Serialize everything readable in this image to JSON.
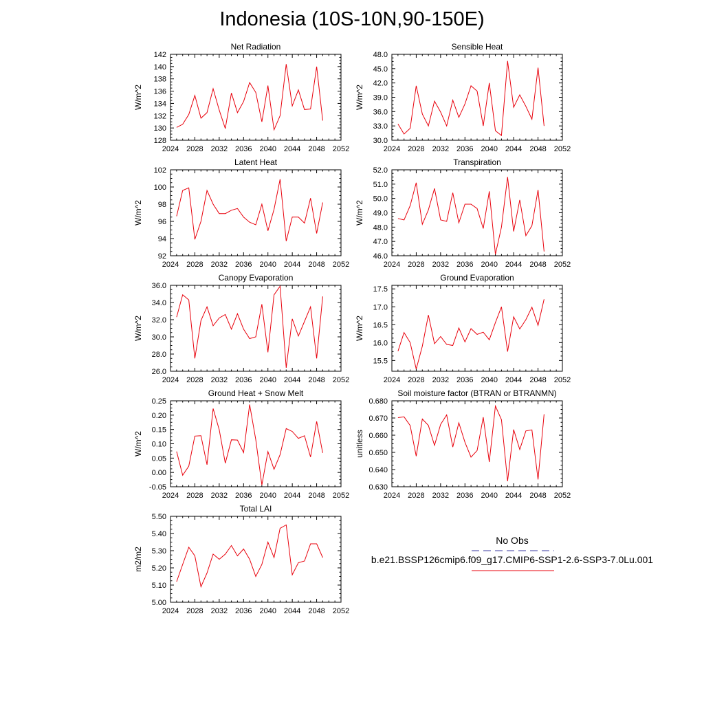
{
  "title": "Indonesia (10S-10N,90-150E)",
  "legend": {
    "obs_label": "No Obs",
    "obs_color": "#3a3aa0",
    "series_label": "b.e21.BSSP126cmip6.f09_g17.CMIP6-SSP1-2.6-SSP3-7.0Lu.001",
    "series_color": "#e8000b"
  },
  "chart_data": [
    {
      "type": "line",
      "title": "Net Radiation",
      "ylabel": "W/m^2",
      "xlim": [
        2024,
        2052
      ],
      "xticks": [
        "2024",
        "2028",
        "2032",
        "2036",
        "2040",
        "2044",
        "2048",
        "2052"
      ],
      "ylim": [
        128,
        142
      ],
      "yticks": [
        "128",
        "130",
        "132",
        "134",
        "136",
        "138",
        "140",
        "142"
      ],
      "x": [
        2025,
        2026,
        2027,
        2028,
        2029,
        2030,
        2031,
        2032,
        2033,
        2034,
        2035,
        2036,
        2037,
        2038,
        2039,
        2040,
        2041,
        2042,
        2043,
        2044,
        2045,
        2046,
        2047,
        2048,
        2049
      ],
      "values": [
        130.1,
        130.6,
        132.2,
        135.3,
        131.6,
        132.5,
        136.4,
        132.9,
        129.9,
        135.7,
        132.5,
        134.3,
        137.4,
        135.8,
        131.0,
        136.9,
        129.7,
        132.0,
        140.4,
        133.6,
        136.2,
        133.0,
        133.1,
        140.0,
        131.2
      ]
    },
    {
      "type": "line",
      "title": "Sensible Heat",
      "ylabel": "W/m^2",
      "xlim": [
        2024,
        2052
      ],
      "xticks": [
        "2024",
        "2028",
        "2032",
        "2036",
        "2040",
        "2044",
        "2048",
        "2052"
      ],
      "ylim": [
        30,
        48
      ],
      "yticks": [
        "30.0",
        "33.0",
        "36.0",
        "39.0",
        "42.0",
        "45.0",
        "48.0"
      ],
      "x": [
        2025,
        2026,
        2027,
        2028,
        2029,
        2030,
        2031,
        2032,
        2033,
        2034,
        2035,
        2036,
        2037,
        2038,
        2039,
        2040,
        2041,
        2042,
        2043,
        2044,
        2045,
        2046,
        2047,
        2048,
        2049
      ],
      "values": [
        33.4,
        31.3,
        32.5,
        41.4,
        35.5,
        33.0,
        38.2,
        35.9,
        33.0,
        38.4,
        34.8,
        37.6,
        41.4,
        40.3,
        33.0,
        42.0,
        32.0,
        31.0,
        46.6,
        36.9,
        39.5,
        37.1,
        34.4,
        45.2,
        33.0
      ]
    },
    {
      "type": "line",
      "title": "Latent Heat",
      "ylabel": "W/m^2",
      "xlim": [
        2024,
        2052
      ],
      "xticks": [
        "2024",
        "2028",
        "2032",
        "2036",
        "2040",
        "2044",
        "2048",
        "2052"
      ],
      "ylim": [
        92,
        102
      ],
      "yticks": [
        "92",
        "94",
        "96",
        "98",
        "100",
        "102"
      ],
      "x": [
        2025,
        2026,
        2027,
        2028,
        2029,
        2030,
        2031,
        2032,
        2033,
        2034,
        2035,
        2036,
        2037,
        2038,
        2039,
        2040,
        2041,
        2042,
        2043,
        2044,
        2045,
        2046,
        2047,
        2048,
        2049
      ],
      "values": [
        96.6,
        99.6,
        99.9,
        93.9,
        96.0,
        99.6,
        98.0,
        96.9,
        96.9,
        97.3,
        97.5,
        96.5,
        95.9,
        95.6,
        98.0,
        94.9,
        97.4,
        100.9,
        93.7,
        96.5,
        96.5,
        95.8,
        98.7,
        94.6,
        98.2
      ]
    },
    {
      "type": "line",
      "title": "Transpiration",
      "ylabel": "W/m^2",
      "xlim": [
        2024,
        2052
      ],
      "xticks": [
        "2024",
        "2028",
        "2032",
        "2036",
        "2040",
        "2044",
        "2048",
        "2052"
      ],
      "ylim": [
        46,
        52
      ],
      "yticks": [
        "46.0",
        "47.0",
        "48.0",
        "49.0",
        "50.0",
        "51.0",
        "52.0"
      ],
      "x": [
        2025,
        2026,
        2027,
        2028,
        2029,
        2030,
        2031,
        2032,
        2033,
        2034,
        2035,
        2036,
        2037,
        2038,
        2039,
        2040,
        2041,
        2042,
        2043,
        2044,
        2045,
        2046,
        2047,
        2048,
        2049
      ],
      "values": [
        48.6,
        48.5,
        49.5,
        51.1,
        48.2,
        49.2,
        50.7,
        48.5,
        48.4,
        50.4,
        48.3,
        49.6,
        49.6,
        49.3,
        47.9,
        50.5,
        46.1,
        48.0,
        51.5,
        47.7,
        49.9,
        47.4,
        48.1,
        50.6,
        46.3
      ]
    },
    {
      "type": "line",
      "title": "Canopy Evaporation",
      "ylabel": "W/m^2",
      "xlim": [
        2024,
        2052
      ],
      "xticks": [
        "2024",
        "2028",
        "2032",
        "2036",
        "2040",
        "2044",
        "2048",
        "2052"
      ],
      "ylim": [
        26,
        36
      ],
      "yticks": [
        "26.0",
        "28.0",
        "30.0",
        "32.0",
        "34.0",
        "36.0"
      ],
      "x": [
        2025,
        2026,
        2027,
        2028,
        2029,
        2030,
        2031,
        2032,
        2033,
        2034,
        2035,
        2036,
        2037,
        2038,
        2039,
        2040,
        2041,
        2042,
        2043,
        2044,
        2045,
        2046,
        2047,
        2048,
        2049
      ],
      "values": [
        32.3,
        34.9,
        34.3,
        27.5,
        31.9,
        33.5,
        31.3,
        32.2,
        32.6,
        30.9,
        32.7,
        30.9,
        29.8,
        30.0,
        33.8,
        28.2,
        34.9,
        35.9,
        26.4,
        32.1,
        30.1,
        31.8,
        33.5,
        27.5,
        34.7
      ]
    },
    {
      "type": "line",
      "title": "Ground Evaporation",
      "ylabel": "W/m^2",
      "xlim": [
        2024,
        2052
      ],
      "xticks": [
        "2024",
        "2028",
        "2032",
        "2036",
        "2040",
        "2044",
        "2048",
        "2052"
      ],
      "ylim": [
        15.2,
        17.6
      ],
      "yticks": [
        "15.5",
        "16.0",
        "16.5",
        "17.0",
        "17.5"
      ],
      "x": [
        2025,
        2026,
        2027,
        2028,
        2029,
        2030,
        2031,
        2032,
        2033,
        2034,
        2035,
        2036,
        2037,
        2038,
        2039,
        2040,
        2041,
        2042,
        2043,
        2044,
        2045,
        2046,
        2047,
        2048,
        2049
      ],
      "values": [
        15.76,
        16.28,
        16.0,
        15.26,
        15.9,
        16.77,
        15.97,
        16.17,
        15.95,
        15.92,
        16.41,
        16.02,
        16.39,
        16.23,
        16.29,
        16.08,
        16.56,
        17.0,
        15.75,
        16.72,
        16.38,
        16.64,
        16.99,
        16.48,
        17.21
      ]
    },
    {
      "type": "line",
      "title": "Ground Heat + Snow Melt",
      "ylabel": "W/m^2",
      "xlim": [
        2024,
        2052
      ],
      "xticks": [
        "2024",
        "2028",
        "2032",
        "2036",
        "2040",
        "2044",
        "2048",
        "2052"
      ],
      "ylim": [
        -0.05,
        0.25
      ],
      "yticks": [
        "-0.05",
        "0.00",
        "0.05",
        "0.10",
        "0.15",
        "0.20",
        "0.25"
      ],
      "x": [
        2025,
        2026,
        2027,
        2028,
        2029,
        2030,
        2031,
        2032,
        2033,
        2034,
        2035,
        2036,
        2037,
        2038,
        2039,
        2040,
        2041,
        2042,
        2043,
        2044,
        2045,
        2046,
        2047,
        2048,
        2049
      ],
      "values": [
        0.073,
        -0.01,
        0.022,
        0.127,
        0.128,
        0.027,
        0.223,
        0.149,
        0.032,
        0.114,
        0.113,
        0.069,
        0.237,
        0.115,
        -0.044,
        0.073,
        0.011,
        0.062,
        0.153,
        0.143,
        0.119,
        0.128,
        0.054,
        0.178,
        0.068
      ]
    },
    {
      "type": "line",
      "title": "Soil moisture factor (BTRAN or BTRANMN)",
      "ylabel": "unitless",
      "xlim": [
        2024,
        2052
      ],
      "xticks": [
        "2024",
        "2028",
        "2032",
        "2036",
        "2040",
        "2044",
        "2048",
        "2052"
      ],
      "ylim": [
        0.63,
        0.68
      ],
      "yticks": [
        "0.630",
        "0.640",
        "0.650",
        "0.660",
        "0.670",
        "0.680"
      ],
      "x": [
        2025,
        2026,
        2027,
        2028,
        2029,
        2030,
        2031,
        2032,
        2033,
        2034,
        2035,
        2036,
        2037,
        2038,
        2039,
        2040,
        2041,
        2042,
        2043,
        2044,
        2045,
        2046,
        2047,
        2048,
        2049
      ],
      "values": [
        0.6702,
        0.6707,
        0.6656,
        0.6478,
        0.6694,
        0.6657,
        0.6541,
        0.6663,
        0.6718,
        0.6531,
        0.6672,
        0.6559,
        0.6472,
        0.6511,
        0.6705,
        0.6444,
        0.677,
        0.669,
        0.6332,
        0.6633,
        0.6517,
        0.6625,
        0.6631,
        0.6342,
        0.6722
      ]
    },
    {
      "type": "line",
      "title": "Total LAI",
      "ylabel": "m2/m2",
      "xlim": [
        2024,
        2052
      ],
      "xticks": [
        "2024",
        "2028",
        "2032",
        "2036",
        "2040",
        "2044",
        "2048",
        "2052"
      ],
      "ylim": [
        5.0,
        5.5
      ],
      "yticks": [
        "5.00",
        "5.10",
        "5.20",
        "5.30",
        "5.40",
        "5.50"
      ],
      "x": [
        2025,
        2026,
        2027,
        2028,
        2029,
        2030,
        2031,
        2032,
        2033,
        2034,
        2035,
        2036,
        2037,
        2038,
        2039,
        2040,
        2041,
        2042,
        2043,
        2044,
        2045,
        2046,
        2047,
        2048,
        2049
      ],
      "values": [
        5.12,
        5.22,
        5.32,
        5.27,
        5.09,
        5.17,
        5.28,
        5.25,
        5.28,
        5.33,
        5.27,
        5.31,
        5.25,
        5.15,
        5.22,
        5.35,
        5.26,
        5.43,
        5.45,
        5.16,
        5.23,
        5.24,
        5.34,
        5.34,
        5.26
      ]
    }
  ]
}
